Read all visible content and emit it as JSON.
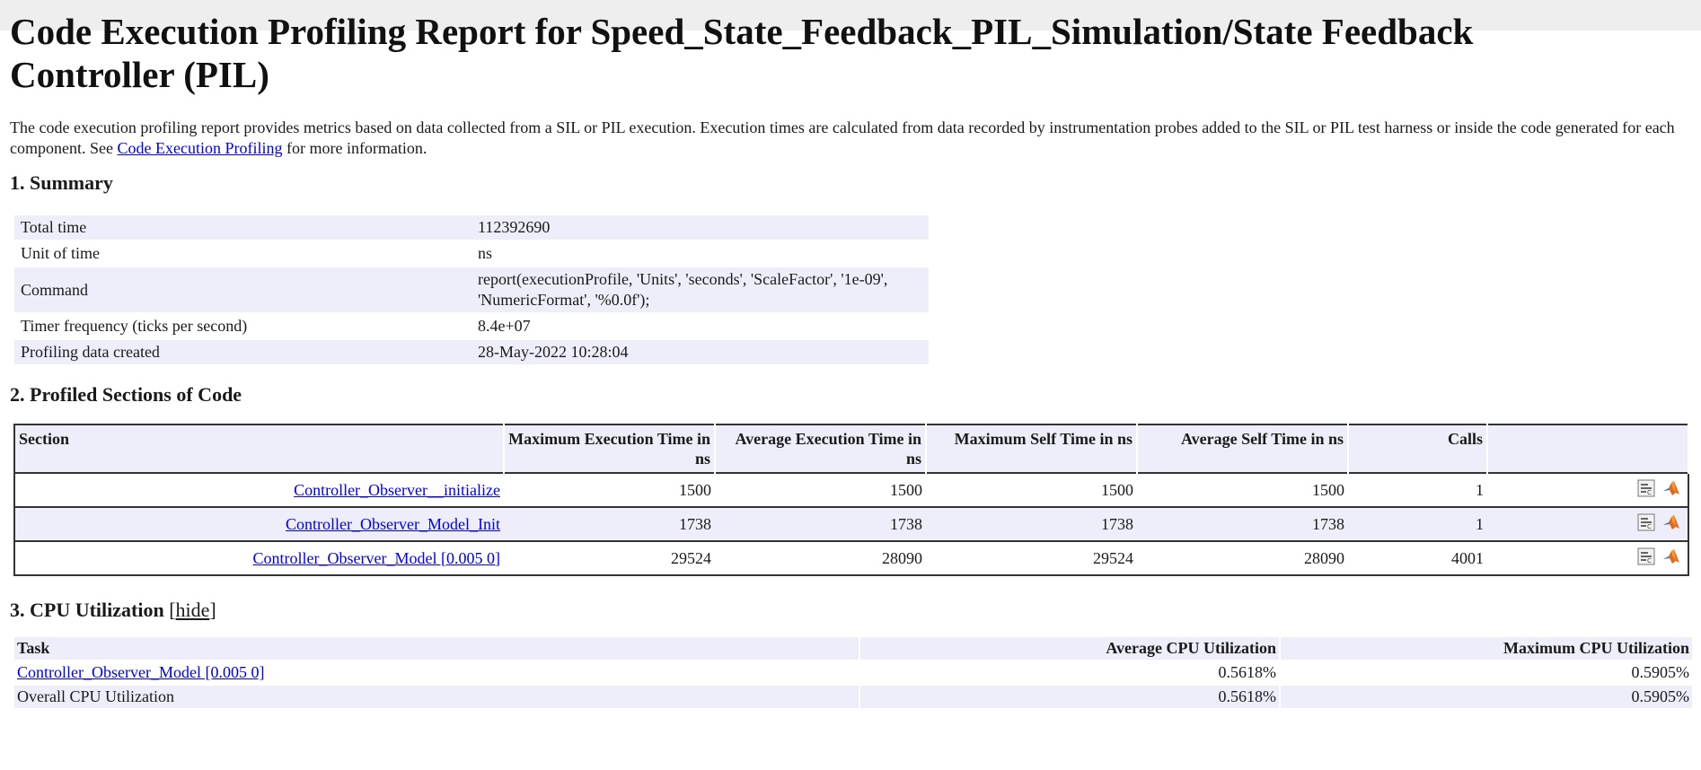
{
  "title": "Code Execution Profiling Report for Speed_State_Feedback_PIL_Simulation/State Feedback Controller (PIL)",
  "intro": {
    "text_before": "The code execution profiling report provides metrics based on data collected from a SIL or PIL execution. Execution times are calculated from data recorded by instrumentation probes added to the SIL or PIL test harness or inside the code generated for each component. See ",
    "link": "Code Execution Profiling",
    "text_after": " for more information."
  },
  "summary": {
    "heading": "1. Summary",
    "rows": [
      {
        "key": "Total time",
        "value": "112392690"
      },
      {
        "key": "Unit of time",
        "value": "ns"
      },
      {
        "key": "Command",
        "value": "report(executionProfile, 'Units', 'seconds', 'ScaleFactor', '1e-09', 'NumericFormat', '%0.0f');"
      },
      {
        "key": "Timer frequency (ticks per second)",
        "value": "8.4e+07"
      },
      {
        "key": "Profiling data created",
        "value": "28-May-2022 10:28:04"
      }
    ]
  },
  "sections": {
    "heading": "2. Profiled Sections of Code",
    "columns": [
      "Section",
      "Maximum Execution Time in ns",
      "Average Execution Time in ns",
      "Maximum Self Time in ns",
      "Average Self Time in ns",
      "Calls"
    ],
    "rows": [
      {
        "name": "Controller_Observer__initialize",
        "max_exec": "1500",
        "avg_exec": "1500",
        "max_self": "1500",
        "avg_self": "1500",
        "calls": "1"
      },
      {
        "name": "Controller_Observer_Model_Init",
        "max_exec": "1738",
        "avg_exec": "1738",
        "max_self": "1738",
        "avg_self": "1738",
        "calls": "1"
      },
      {
        "name": "Controller_Observer_Model [0.005 0]",
        "max_exec": "29524",
        "avg_exec": "28090",
        "max_self": "29524",
        "avg_self": "28090",
        "calls": "4001"
      }
    ]
  },
  "cpu": {
    "heading": "3. CPU Utilization",
    "hide_label": "hide",
    "columns": [
      "Task",
      "Average CPU Utilization",
      "Maximum CPU Utilization"
    ],
    "rows": [
      {
        "task": "Controller_Observer_Model [0.005 0]",
        "avg": "0.5618%",
        "max": "0.5905%"
      },
      {
        "task": "Overall CPU Utilization",
        "avg": "0.5618%",
        "max": "0.5905%"
      }
    ]
  }
}
